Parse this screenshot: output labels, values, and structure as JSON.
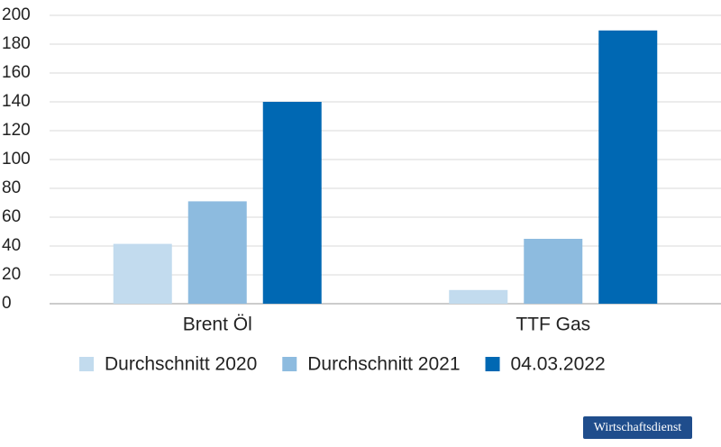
{
  "chart_data": {
    "type": "bar",
    "categories": [
      "Brent Öl",
      "TTF Gas"
    ],
    "series": [
      {
        "name": "Durchschnitt 2020",
        "color": "#c2dbee",
        "values": [
          41.5,
          9.5
        ]
      },
      {
        "name": "Durchschnitt 2021",
        "color": "#8dbbdf",
        "values": [
          71,
          45
        ]
      },
      {
        "name": "04.03.2022",
        "color": "#0068b3",
        "values": [
          140,
          189.5
        ]
      }
    ],
    "ylim": [
      0,
      200
    ],
    "yticks": [
      0,
      20,
      40,
      60,
      80,
      100,
      120,
      140,
      160,
      180,
      200
    ],
    "grid": true,
    "legend": "bottom",
    "credit": "Wirtschaftsdienst"
  }
}
